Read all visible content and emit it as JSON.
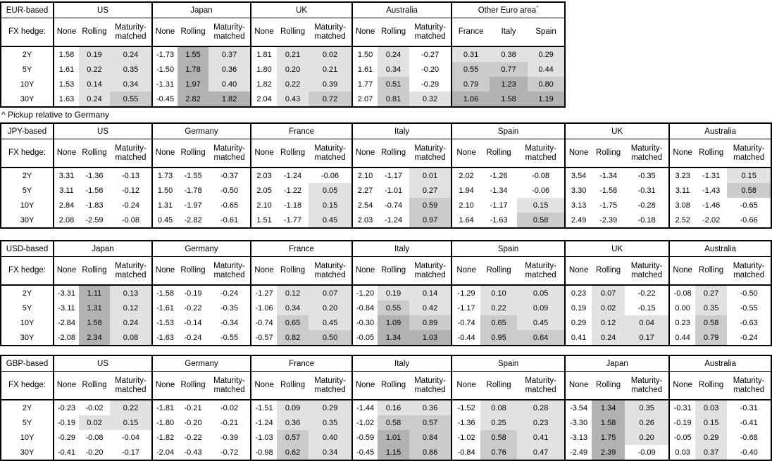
{
  "colors": {
    "background": "#ffffff",
    "text": "#000000",
    "border": "#000000",
    "cell_light": "#e2e2e2",
    "cell_medium": "#cbcbcb",
    "cell_dark": "#b2b2b2"
  },
  "heatmap": {
    "rule": "shading applies to Rolling and Maturity-matched columns and to Other-Euro-area pickup columns; None column never shaded",
    "light_from": 0,
    "medium_from": 0.5,
    "dark_from": 1.0
  },
  "labels": {
    "fx_hedge": "FX hedge:",
    "footnote": "^ Pickup relative to Germany"
  },
  "sub_columns": [
    "None",
    "Rolling",
    "Maturity-matched"
  ],
  "maturities": [
    "2Y",
    "5Y",
    "10Y",
    "30Y"
  ],
  "tables": [
    {
      "base_label": "EUR-based",
      "groups": [
        {
          "name": "US",
          "rows": [
            [
              "1.58",
              "0.19",
              "0.24"
            ],
            [
              "1.61",
              "0.22",
              "0.35"
            ],
            [
              "1.53",
              "0.14",
              "0.34"
            ],
            [
              "1.63",
              "0.24",
              "0.55"
            ]
          ]
        },
        {
          "name": "Japan",
          "rows": [
            [
              "-1.73",
              "1.55",
              "0.37"
            ],
            [
              "-1.50",
              "1.78",
              "0.36"
            ],
            [
              "-1.31",
              "1.97",
              "0.40"
            ],
            [
              "-0.45",
              "2.82",
              "1.82"
            ]
          ]
        },
        {
          "name": "UK",
          "rows": [
            [
              "1.81",
              "0.21",
              "0.02"
            ],
            [
              "1.80",
              "0.20",
              "0.21"
            ],
            [
              "1.82",
              "0.22",
              "0.39"
            ],
            [
              "2.04",
              "0.43",
              "0.72"
            ]
          ]
        },
        {
          "name": "Australia",
          "rows": [
            [
              "1.50",
              "0.24",
              "-0.27"
            ],
            [
              "1.61",
              "0.34",
              "-0.20"
            ],
            [
              "1.77",
              "0.51",
              "-0.29"
            ],
            [
              "2.07",
              "0.81",
              "0.32"
            ]
          ]
        },
        {
          "name": "Other Euro area",
          "superscript": "^",
          "columns": [
            "France",
            "Italy",
            "Spain"
          ],
          "rows": [
            [
              "0.31",
              "0.38",
              "0.29"
            ],
            [
              "0.55",
              "0.77",
              "0.44"
            ],
            [
              "0.79",
              "1.23",
              "0.80"
            ],
            [
              "1.06",
              "1.58",
              "1.19"
            ]
          ]
        }
      ]
    },
    {
      "base_label": "JPY-based",
      "groups": [
        {
          "name": "US",
          "rows": [
            [
              "3.31",
              "-1.36",
              "-0.13"
            ],
            [
              "3.11",
              "-1.56",
              "-0.12"
            ],
            [
              "2.84",
              "-1.83",
              "-0.24"
            ],
            [
              "2.08",
              "-2.59",
              "-0.08"
            ]
          ]
        },
        {
          "name": "Germany",
          "rows": [
            [
              "1.73",
              "-1.55",
              "-0.37"
            ],
            [
              "1.50",
              "-1.78",
              "-0.50"
            ],
            [
              "1.31",
              "-1.97",
              "-0.65"
            ],
            [
              "0.45",
              "-2.82",
              "-0.61"
            ]
          ]
        },
        {
          "name": "France",
          "rows": [
            [
              "2.03",
              "-1.24",
              "-0.06"
            ],
            [
              "2.05",
              "-1.22",
              "0.05"
            ],
            [
              "2.10",
              "-1.18",
              "0.15"
            ],
            [
              "1.51",
              "-1.77",
              "0.45"
            ]
          ]
        },
        {
          "name": "Italy",
          "rows": [
            [
              "2.10",
              "-1.17",
              "0.01"
            ],
            [
              "2.27",
              "-1.01",
              "0.27"
            ],
            [
              "2.54",
              "-0.74",
              "0.59"
            ],
            [
              "2.03",
              "-1.24",
              "0.97"
            ]
          ]
        },
        {
          "name": "Spain",
          "rows": [
            [
              "2.02",
              "-1.26",
              "-0.08"
            ],
            [
              "1.94",
              "-1.34",
              "-0.06"
            ],
            [
              "2.10",
              "-1.17",
              "0.15"
            ],
            [
              "1.64",
              "-1.63",
              "0.58"
            ]
          ]
        },
        {
          "name": "UK",
          "rows": [
            [
              "3.54",
              "-1.34",
              "-0.35"
            ],
            [
              "3.30",
              "-1.58",
              "-0.31"
            ],
            [
              "3.13",
              "-1.75",
              "-0.28"
            ],
            [
              "2.49",
              "-2.39",
              "-0.18"
            ]
          ]
        },
        {
          "name": "Australia",
          "rows": [
            [
              "3.23",
              "-1.31",
              "0.15"
            ],
            [
              "3.11",
              "-1.43",
              "0.58"
            ],
            [
              "3.08",
              "-1.46",
              "-0.65"
            ],
            [
              "2.52",
              "-2.02",
              "-0.66"
            ]
          ]
        }
      ]
    },
    {
      "base_label": "USD-based",
      "groups": [
        {
          "name": "Japan",
          "rows": [
            [
              "-3.31",
              "1.11",
              "0.13"
            ],
            [
              "-3.11",
              "1.31",
              "0.12"
            ],
            [
              "-2.84",
              "1.58",
              "0.24"
            ],
            [
              "-2.08",
              "2.34",
              "0.08"
            ]
          ]
        },
        {
          "name": "Germany",
          "rows": [
            [
              "-1.58",
              "-0.19",
              "-0.24"
            ],
            [
              "-1.61",
              "-0.22",
              "-0.35"
            ],
            [
              "-1.53",
              "-0.14",
              "-0.34"
            ],
            [
              "-1.63",
              "-0.24",
              "-0.55"
            ]
          ]
        },
        {
          "name": "France",
          "rows": [
            [
              "-1.27",
              "0.12",
              "0.07"
            ],
            [
              "-1.06",
              "0.34",
              "0.20"
            ],
            [
              "-0.74",
              "0.65",
              "0.45"
            ],
            [
              "-0.57",
              "0.82",
              "0.50"
            ]
          ]
        },
        {
          "name": "Italy",
          "rows": [
            [
              "-1.20",
              "0.19",
              "0.14"
            ],
            [
              "-0.84",
              "0.55",
              "0.42"
            ],
            [
              "-0.30",
              "1.09",
              "0.89"
            ],
            [
              "-0.05",
              "1.34",
              "1.03"
            ]
          ]
        },
        {
          "name": "Spain",
          "rows": [
            [
              "-1.29",
              "0.10",
              "0.05"
            ],
            [
              "-1.17",
              "0.22",
              "0.09"
            ],
            [
              "-0.74",
              "0.65",
              "0.45"
            ],
            [
              "-0.44",
              "0.95",
              "0.64"
            ]
          ]
        },
        {
          "name": "UK",
          "rows": [
            [
              "0.23",
              "0.07",
              "-0.22"
            ],
            [
              "0.19",
              "0.02",
              "-0.15"
            ],
            [
              "0.29",
              "0.12",
              "0.04"
            ],
            [
              "0.41",
              "0.24",
              "0.17"
            ]
          ]
        },
        {
          "name": "Australia",
          "rows": [
            [
              "-0.08",
              "0.27",
              "-0.50"
            ],
            [
              "0.00",
              "0.35",
              "-0.55"
            ],
            [
              "0.23",
              "0.58",
              "-0.63"
            ],
            [
              "0.44",
              "0.79",
              "-0.24"
            ]
          ]
        }
      ]
    },
    {
      "base_label": "GBP-based",
      "groups": [
        {
          "name": "US",
          "rows": [
            [
              "-0.23",
              "-0.02",
              "0.22"
            ],
            [
              "-0.19",
              "0.02",
              "0.15"
            ],
            [
              "-0.29",
              "-0.08",
              "-0.04"
            ],
            [
              "-0.41",
              "-0.20",
              "-0.17"
            ]
          ]
        },
        {
          "name": "Germany",
          "rows": [
            [
              "-1.81",
              "-0.21",
              "-0.02"
            ],
            [
              "-1.80",
              "-0.20",
              "-0.21"
            ],
            [
              "-1.82",
              "-0.22",
              "-0.39"
            ],
            [
              "-2.04",
              "-0.43",
              "-0.72"
            ]
          ]
        },
        {
          "name": "France",
          "rows": [
            [
              "-1.51",
              "0.09",
              "0.29"
            ],
            [
              "-1.24",
              "0.36",
              "0.35"
            ],
            [
              "-1.03",
              "0.57",
              "0.40"
            ],
            [
              "-0.98",
              "0.62",
              "0.34"
            ]
          ]
        },
        {
          "name": "Italy",
          "rows": [
            [
              "-1.44",
              "0.16",
              "0.36"
            ],
            [
              "-1.02",
              "0.58",
              "0.57"
            ],
            [
              "-0.59",
              "1.01",
              "0.84"
            ],
            [
              "-0.45",
              "1.15",
              "0.86"
            ]
          ]
        },
        {
          "name": "Spain",
          "rows": [
            [
              "-1.52",
              "0.08",
              "0.28"
            ],
            [
              "-1.36",
              "0.25",
              "0.23"
            ],
            [
              "-1.02",
              "0.58",
              "0.41"
            ],
            [
              "-0.84",
              "0.76",
              "0.47"
            ]
          ]
        },
        {
          "name": "Japan",
          "rows": [
            [
              "-3.54",
              "1.34",
              "0.35"
            ],
            [
              "-3.30",
              "1.58",
              "0.26"
            ],
            [
              "-3.13",
              "1.75",
              "0.20"
            ],
            [
              "-2.49",
              "2.39",
              "-0.09"
            ]
          ]
        },
        {
          "name": "Australia",
          "rows": [
            [
              "-0.31",
              "0.03",
              "-0.31"
            ],
            [
              "-0.19",
              "0.15",
              "-0.41"
            ],
            [
              "-0.05",
              "0.29",
              "-0.68"
            ],
            [
              "0.03",
              "0.37",
              "-0.40"
            ]
          ]
        }
      ]
    }
  ]
}
